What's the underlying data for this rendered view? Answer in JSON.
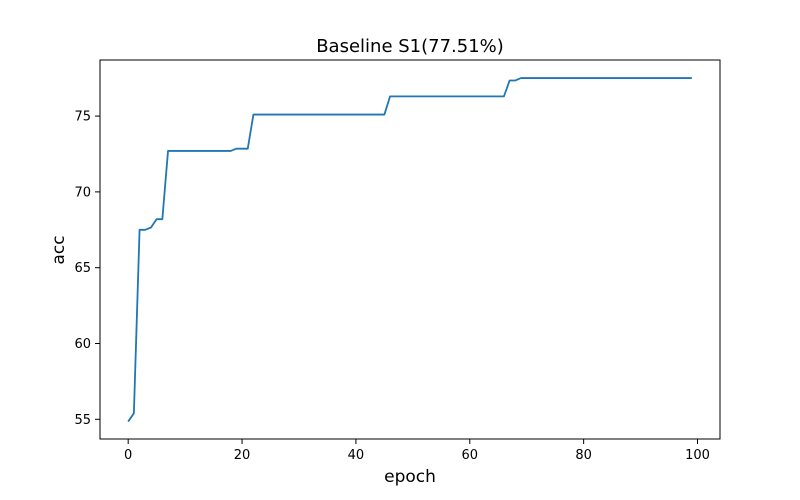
{
  "chart_data": {
    "type": "line",
    "title": "Baseline S1(77.51%)",
    "xlabel": "epoch",
    "ylabel": "acc",
    "xlim": [
      -4.95,
      103.95
    ],
    "ylim": [
      53.7,
      78.7
    ],
    "xticks": [
      0,
      20,
      40,
      60,
      80,
      100
    ],
    "yticks": [
      55,
      60,
      65,
      70,
      75
    ],
    "grid": false,
    "line_color": "#1f77b4",
    "series": [
      {
        "x": [
          0,
          1,
          2,
          3,
          4,
          5,
          6,
          7,
          8,
          9,
          10,
          11,
          12,
          13,
          14,
          15,
          16,
          17,
          18,
          19,
          20,
          21,
          22,
          23,
          24,
          25,
          26,
          27,
          28,
          29,
          30,
          31,
          32,
          33,
          34,
          35,
          36,
          37,
          38,
          39,
          40,
          41,
          42,
          43,
          44,
          45,
          46,
          47,
          48,
          49,
          50,
          51,
          52,
          53,
          54,
          55,
          56,
          57,
          58,
          59,
          60,
          61,
          62,
          63,
          64,
          65,
          66,
          67,
          68,
          69,
          70,
          71,
          72,
          73,
          74,
          75,
          76,
          77,
          78,
          79,
          80,
          81,
          82,
          83,
          84,
          85,
          86,
          87,
          88,
          89,
          90,
          91,
          92,
          93,
          94,
          95,
          96,
          97,
          98,
          99
        ],
        "y": [
          54.85,
          55.4,
          67.5,
          67.5,
          67.65,
          68.2,
          68.2,
          72.7,
          72.7,
          72.7,
          72.7,
          72.7,
          72.7,
          72.7,
          72.7,
          72.7,
          72.7,
          72.7,
          72.7,
          72.85,
          72.85,
          72.85,
          75.1,
          75.1,
          75.1,
          75.1,
          75.1,
          75.1,
          75.1,
          75.1,
          75.1,
          75.1,
          75.1,
          75.1,
          75.1,
          75.1,
          75.1,
          75.1,
          75.1,
          75.1,
          75.1,
          75.1,
          75.1,
          75.1,
          75.1,
          75.1,
          76.3,
          76.3,
          76.3,
          76.3,
          76.3,
          76.3,
          76.3,
          76.3,
          76.3,
          76.3,
          76.3,
          76.3,
          76.3,
          76.3,
          76.3,
          76.3,
          76.3,
          76.3,
          76.3,
          76.3,
          76.3,
          77.35,
          77.35,
          77.51,
          77.51,
          77.51,
          77.51,
          77.51,
          77.51,
          77.51,
          77.51,
          77.51,
          77.51,
          77.51,
          77.51,
          77.51,
          77.51,
          77.51,
          77.51,
          77.51,
          77.51,
          77.51,
          77.51,
          77.51,
          77.51,
          77.51,
          77.51,
          77.51,
          77.51,
          77.51,
          77.51,
          77.51,
          77.51,
          77.51
        ]
      }
    ]
  }
}
